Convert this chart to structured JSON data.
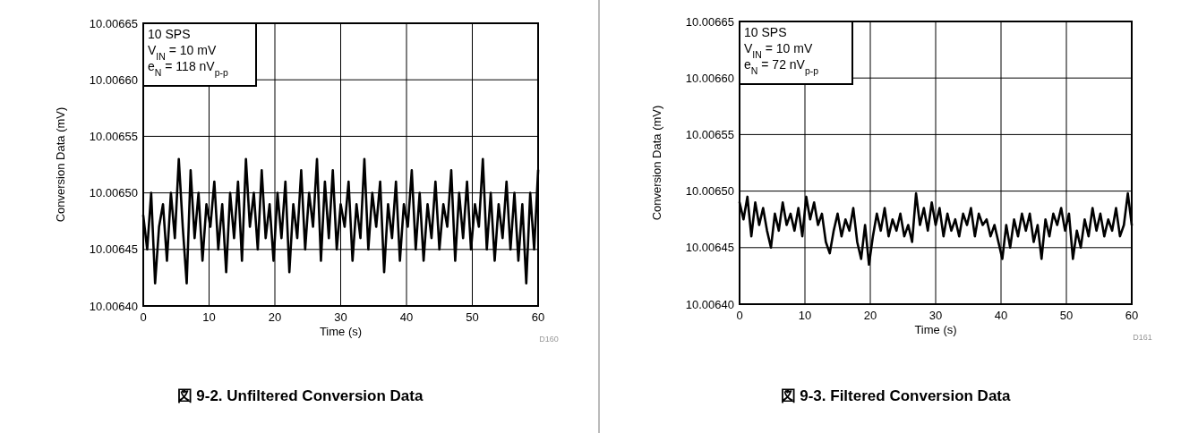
{
  "chart_data": [
    {
      "type": "line",
      "title": "図 9-2. Unfiltered Conversion Data",
      "xlabel": "Time (s)",
      "ylabel": "Conversion Data (mV)",
      "color": "#000000",
      "grid": true,
      "xlim": [
        0,
        60
      ],
      "ylim": [
        10.0064,
        10.00665
      ],
      "xticks": [
        0,
        10,
        20,
        30,
        40,
        50,
        60
      ],
      "yticks": [
        {
          "value": 10.0064,
          "label": "10.00640"
        },
        10.00645,
        {
          "value": 10.0065,
          "label": "10.00650"
        },
        10.00655,
        {
          "value": 10.0066,
          "label": "10.00660"
        },
        10.00665
      ],
      "annotations": [
        "10 SPS",
        "V$_{IN}$ = 10 mV",
        "e$_{N}$ = 118 nV$_{p-p}$",
        "D160"
      ],
      "x": [
        0,
        0.6,
        1.2,
        1.8,
        2.4,
        3.0,
        3.6,
        4.2,
        4.8,
        5.4,
        6.0,
        6.6,
        7.2,
        7.8,
        8.4,
        9.0,
        9.6,
        10.2,
        10.8,
        11.4,
        12.0,
        12.6,
        13.2,
        13.8,
        14.4,
        15.0,
        15.6,
        16.2,
        16.8,
        17.4,
        18.0,
        18.6,
        19.2,
        19.8,
        20.4,
        21.0,
        21.6,
        22.2,
        22.8,
        23.4,
        24.0,
        24.6,
        25.2,
        25.8,
        26.4,
        27.0,
        27.6,
        28.2,
        28.8,
        29.4,
        30.0,
        30.6,
        31.2,
        31.8,
        32.4,
        33.0,
        33.6,
        34.2,
        34.8,
        35.4,
        36.0,
        36.6,
        37.2,
        37.8,
        38.4,
        39.0,
        39.6,
        40.2,
        40.8,
        41.4,
        42.0,
        42.6,
        43.2,
        43.8,
        44.4,
        45.0,
        45.6,
        46.2,
        46.8,
        47.4,
        48.0,
        48.6,
        49.2,
        49.8,
        50.4,
        51.0,
        51.6,
        52.2,
        52.8,
        53.4,
        54.0,
        54.6,
        55.2,
        55.8,
        56.4,
        57.0,
        57.6,
        58.2,
        58.8,
        59.4,
        60.0
      ],
      "values": [
        10.00648,
        10.00645,
        10.0065,
        10.00642,
        10.00647,
        10.00649,
        10.00644,
        10.0065,
        10.00646,
        10.00653,
        10.00647,
        10.00642,
        10.00652,
        10.00646,
        10.0065,
        10.00644,
        10.00649,
        10.00647,
        10.00651,
        10.00645,
        10.00649,
        10.00643,
        10.0065,
        10.00646,
        10.00651,
        10.00644,
        10.00653,
        10.00647,
        10.0065,
        10.00645,
        10.00652,
        10.00646,
        10.00649,
        10.00644,
        10.0065,
        10.00646,
        10.00651,
        10.00643,
        10.00649,
        10.00646,
        10.00652,
        10.00645,
        10.0065,
        10.00647,
        10.00653,
        10.00644,
        10.00651,
        10.00646,
        10.00652,
        10.00645,
        10.00649,
        10.00647,
        10.00651,
        10.00644,
        10.00649,
        10.00646,
        10.00653,
        10.00645,
        10.0065,
        10.00647,
        10.00651,
        10.00643,
        10.00649,
        10.00646,
        10.00651,
        10.00644,
        10.00649,
        10.00647,
        10.00652,
        10.00645,
        10.0065,
        10.00644,
        10.00649,
        10.00646,
        10.00651,
        10.00645,
        10.00649,
        10.00647,
        10.00652,
        10.00644,
        10.0065,
        10.00646,
        10.00651,
        10.00645,
        10.00649,
        10.00647,
        10.00653,
        10.00645,
        10.0065,
        10.00644,
        10.00649,
        10.00646,
        10.00651,
        10.00645,
        10.0065,
        10.00644,
        10.00649,
        10.00642,
        10.0065,
        10.00645,
        10.00652
      ]
    },
    {
      "type": "line",
      "title": "図 9-3. Filtered Conversion Data",
      "xlabel": "Time (s)",
      "ylabel": "Conversion Data (mV)",
      "color": "#000000",
      "grid": true,
      "xlim": [
        0,
        60
      ],
      "ylim": [
        10.0064,
        10.00665
      ],
      "xticks": [
        0,
        10,
        20,
        30,
        40,
        50,
        60
      ],
      "yticks": [
        {
          "value": 10.0064,
          "label": "10.00640"
        },
        10.00645,
        {
          "value": 10.0065,
          "label": "10.00650"
        },
        10.00655,
        {
          "value": 10.0066,
          "label": "10.00660"
        },
        10.00665
      ],
      "annotations": [
        "10 SPS",
        "V$_{IN}$ = 10 mV",
        "e$_{N}$ = 72 nV$_{p-p}$",
        "D161"
      ],
      "x": [
        0,
        0.6,
        1.2,
        1.8,
        2.4,
        3.0,
        3.6,
        4.2,
        4.8,
        5.4,
        6.0,
        6.6,
        7.2,
        7.8,
        8.4,
        9.0,
        9.6,
        10.2,
        10.8,
        11.4,
        12.0,
        12.6,
        13.2,
        13.8,
        14.4,
        15.0,
        15.6,
        16.2,
        16.8,
        17.4,
        18.0,
        18.6,
        19.2,
        19.8,
        20.4,
        21.0,
        21.6,
        22.2,
        22.8,
        23.4,
        24.0,
        24.6,
        25.2,
        25.8,
        26.4,
        27.0,
        27.6,
        28.2,
        28.8,
        29.4,
        30.0,
        30.6,
        31.2,
        31.8,
        32.4,
        33.0,
        33.6,
        34.2,
        34.8,
        35.4,
        36.0,
        36.6,
        37.2,
        37.8,
        38.4,
        39.0,
        39.6,
        40.2,
        40.8,
        41.4,
        42.0,
        42.6,
        43.2,
        43.8,
        44.4,
        45.0,
        45.6,
        46.2,
        46.8,
        47.4,
        48.0,
        48.6,
        49.2,
        49.8,
        50.4,
        51.0,
        51.6,
        52.2,
        52.8,
        53.4,
        54.0,
        54.6,
        55.2,
        55.8,
        56.4,
        57.0,
        57.6,
        58.2,
        58.8,
        59.4,
        60.0
      ],
      "values": [
        10.00649,
        10.006475,
        10.006495,
        10.00646,
        10.00649,
        10.00647,
        10.006485,
        10.006465,
        10.00645,
        10.00648,
        10.006465,
        10.00649,
        10.00647,
        10.00648,
        10.006465,
        10.006485,
        10.00646,
        10.006495,
        10.006475,
        10.00649,
        10.00647,
        10.00648,
        10.006455,
        10.006445,
        10.006465,
        10.00648,
        10.00646,
        10.006475,
        10.006465,
        10.006485,
        10.006455,
        10.00644,
        10.00647,
        10.006435,
        10.00646,
        10.00648,
        10.006465,
        10.006485,
        10.00646,
        10.006475,
        10.006465,
        10.00648,
        10.00646,
        10.00647,
        10.006455,
        10.006498,
        10.00647,
        10.006485,
        10.006465,
        10.00649,
        10.00647,
        10.006485,
        10.00646,
        10.00648,
        10.006465,
        10.006475,
        10.00646,
        10.00648,
        10.00647,
        10.006485,
        10.00646,
        10.00648,
        10.00647,
        10.006475,
        10.00646,
        10.00647,
        10.006455,
        10.00644,
        10.00647,
        10.00645,
        10.006475,
        10.00646,
        10.00648,
        10.006465,
        10.00648,
        10.006455,
        10.00647,
        10.00644,
        10.006475,
        10.00646,
        10.00648,
        10.00647,
        10.006485,
        10.006465,
        10.00648,
        10.00644,
        10.006465,
        10.00645,
        10.006475,
        10.00646,
        10.006485,
        10.006465,
        10.00648,
        10.00646,
        10.006475,
        10.006465,
        10.006485,
        10.00646,
        10.00647,
        10.006498,
        10.00647
      ]
    }
  ]
}
